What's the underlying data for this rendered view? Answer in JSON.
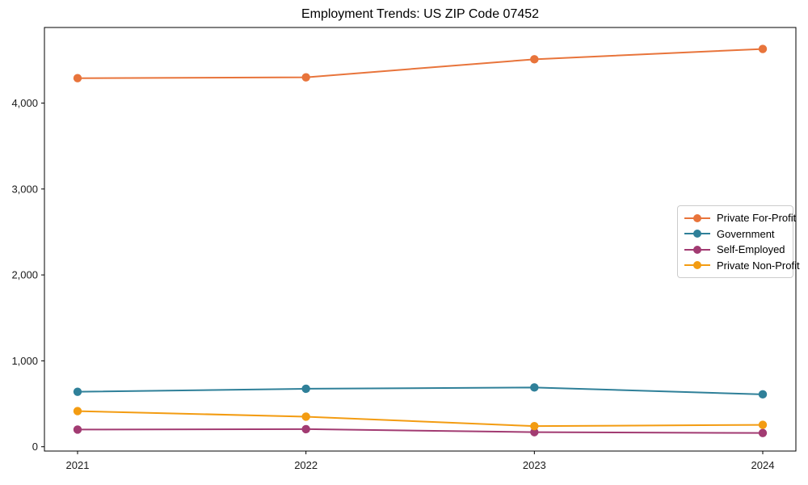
{
  "chart_data": {
    "type": "line",
    "title": "Employment Trends: US ZIP Code 07452",
    "xlabel": "",
    "ylabel": "",
    "categories": [
      "2021",
      "2022",
      "2023",
      "2024"
    ],
    "series": [
      {
        "name": "Private For-Profit",
        "color": "#E8743B",
        "values": [
          4290,
          4300,
          4510,
          4630
        ]
      },
      {
        "name": "Government",
        "color": "#2F8099",
        "values": [
          640,
          675,
          690,
          610
        ]
      },
      {
        "name": "Self-Employed",
        "color": "#A23B72",
        "values": [
          200,
          205,
          170,
          160
        ]
      },
      {
        "name": "Private Non-Profit",
        "color": "#F39C12",
        "values": [
          415,
          350,
          240,
          255
        ]
      }
    ],
    "y_ticks": [
      0,
      1000,
      2000,
      3000,
      4000
    ],
    "y_tick_labels": [
      "0",
      "1,000",
      "2,000",
      "3,000",
      "4,000"
    ],
    "ylim": [
      -50,
      4880
    ],
    "grid": false,
    "legend_position": "center-right",
    "marker": "circle",
    "axis_color": "#000000",
    "tick_label_color": "#1a1a1a"
  }
}
